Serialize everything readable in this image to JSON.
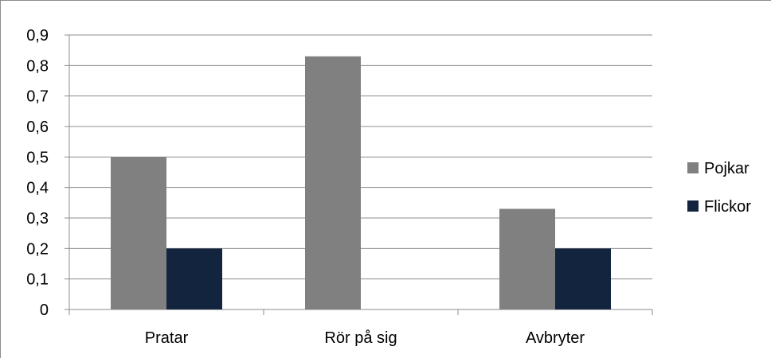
{
  "chart_data": {
    "type": "bar",
    "categories": [
      "Pratar",
      "Rör på sig",
      "Avbryter"
    ],
    "series": [
      {
        "name": "Pojkar",
        "values": [
          0.5,
          0.83,
          0.33
        ],
        "color": "#808080"
      },
      {
        "name": "Flickor",
        "values": [
          0.2,
          0.0,
          0.2
        ],
        "color": "#13243f"
      }
    ],
    "ylim": [
      0,
      0.9
    ],
    "yticks": [
      "0",
      "0,1",
      "0,2",
      "0,3",
      "0,4",
      "0,5",
      "0,6",
      "0,7",
      "0,8",
      "0,9"
    ],
    "grid": true,
    "legend_position": "right"
  }
}
